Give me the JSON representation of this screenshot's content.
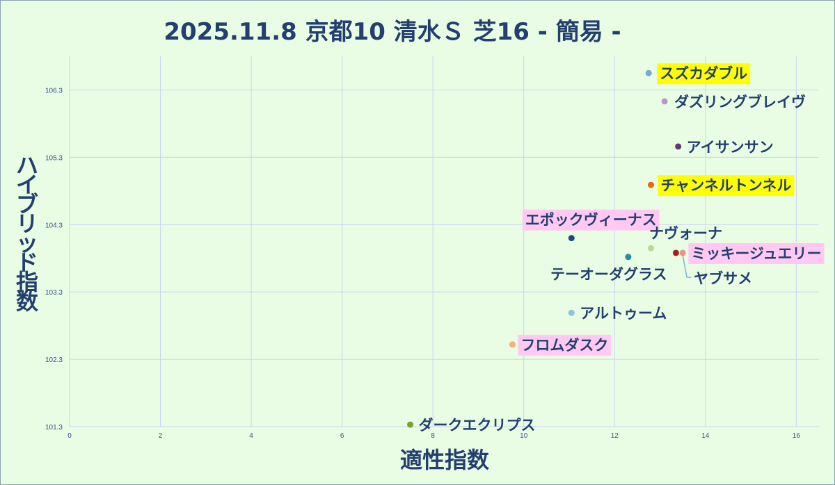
{
  "chart_data": {
    "type": "scatter",
    "title": "2025.11.8 京都10 清水Ｓ 芝16 - 簡易 -",
    "xlabel": "適性指数",
    "ylabel": "ハイブリッド指数",
    "xlim": [
      0,
      16.5
    ],
    "ylim": [
      101.3,
      106.8
    ],
    "xticks": [
      "0",
      "2",
      "4",
      "6",
      "8",
      "10",
      "12",
      "14",
      "16"
    ],
    "yticks": [
      "101.3",
      "102.3",
      "103.3",
      "104.3",
      "105.3",
      "106.3"
    ],
    "grid": true,
    "legend": "none",
    "points": [
      {
        "name": "スズカダブル",
        "x": 12.75,
        "y": 106.55,
        "color": "#7aa6d9",
        "highlight": "#ffff00"
      },
      {
        "name": "ダズリングブレイヴ",
        "x": 13.1,
        "y": 106.13,
        "color": "#b79ac9",
        "highlight": ""
      },
      {
        "name": "アイサンサン",
        "x": 13.4,
        "y": 105.46,
        "color": "#5b3a6e",
        "highlight": ""
      },
      {
        "name": "チャンネルトンネル",
        "x": 12.8,
        "y": 104.89,
        "color": "#f2630f",
        "highlight": "#ffff00"
      },
      {
        "name": "エポックヴィーナス",
        "x": 11.05,
        "y": 104.1,
        "color": "#1f4b82",
        "highlight": "#ffc9f2"
      },
      {
        "name": "ナヴォーナ",
        "x": 12.8,
        "y": 103.95,
        "color": "#c2d39a",
        "highlight": ""
      },
      {
        "name": "ミッキージュエリー",
        "x": 13.35,
        "y": 103.88,
        "color": "#a52016",
        "highlight": "#ffc9f2"
      },
      {
        "name": "ヤブサメ",
        "x": 13.5,
        "y": 103.88,
        "color": "#e8958a",
        "highlight": ""
      },
      {
        "name": "テーオーダグラス",
        "x": 12.3,
        "y": 103.82,
        "color": "#2c8ca0",
        "highlight": ""
      },
      {
        "name": "アルトゥーム",
        "x": 11.05,
        "y": 102.99,
        "color": "#8ec3dc",
        "highlight": ""
      },
      {
        "name": "フロムダスク",
        "x": 9.75,
        "y": 102.52,
        "color": "#f5b07c",
        "highlight": "#ffc9f2"
      },
      {
        "name": "ダークエクリプス",
        "x": 7.5,
        "y": 101.33,
        "color": "#7fa02e",
        "highlight": ""
      }
    ]
  }
}
